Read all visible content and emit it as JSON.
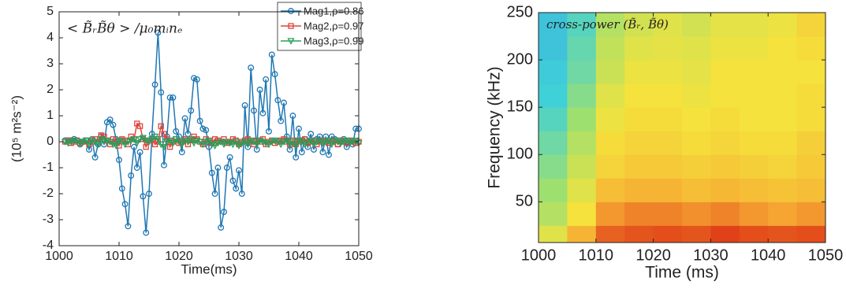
{
  "chart_data": [
    {
      "type": "line",
      "annotation": "< B̃ᵣB̃θ > /μ₀mᵢnₑ",
      "xlabel": "Time(ms)",
      "ylabel": "(10⁵ m²s⁻²)",
      "xlim": [
        1000,
        1050
      ],
      "xticks": [
        1000,
        1010,
        1020,
        1030,
        1040,
        1050
      ],
      "ylim": [
        -4,
        5
      ],
      "yticks": [
        -4,
        -3,
        -2,
        -1,
        0,
        1,
        2,
        3,
        4,
        5
      ],
      "legend": "upper right",
      "x": [
        1001,
        1001.5,
        1002,
        1002.5,
        1003,
        1003.5,
        1004,
        1004.5,
        1005,
        1005.5,
        1006,
        1006.5,
        1007,
        1007.5,
        1008,
        1008.5,
        1009,
        1009.5,
        1010,
        1010.5,
        1011,
        1011.5,
        1012,
        1012.5,
        1013,
        1013.5,
        1014,
        1014.5,
        1015,
        1015.5,
        1016,
        1016.5,
        1017,
        1017.5,
        1018,
        1018.5,
        1019,
        1019.5,
        1020,
        1020.5,
        1021,
        1021.5,
        1022,
        1022.5,
        1023,
        1023.5,
        1024,
        1024.5,
        1025,
        1025.5,
        1026,
        1026.5,
        1027,
        1027.5,
        1028,
        1028.5,
        1029,
        1029.5,
        1030,
        1030.5,
        1031,
        1031.5,
        1032,
        1032.5,
        1033,
        1033.5,
        1034,
        1034.5,
        1035,
        1035.5,
        1036,
        1036.5,
        1037,
        1037.5,
        1038,
        1038.5,
        1039,
        1039.5,
        1040,
        1040.5,
        1041,
        1041.5,
        1042,
        1042.5,
        1043,
        1043.5,
        1044,
        1044.5,
        1045,
        1045.5,
        1046,
        1046.5,
        1047,
        1047.5,
        1048,
        1048.5,
        1049,
        1049.5,
        1050
      ],
      "series": [
        {
          "name": "Mag1,ρ=0.86",
          "color": "#1f77b4",
          "marker": "circle",
          "values": [
            0.05,
            0.05,
            0.05,
            0.1,
            0.05,
            -0.1,
            0,
            0.05,
            -0.3,
            0.1,
            -0.6,
            -0.1,
            0.2,
            -0.1,
            0.75,
            0.85,
            0.65,
            0.1,
            -0.7,
            -1.8,
            -2.4,
            -3.25,
            -1.3,
            -0.2,
            -1.0,
            -0.4,
            -2.1,
            -3.5,
            -2.0,
            0.3,
            2.2,
            4.2,
            1.9,
            -0.9,
            0.2,
            1.7,
            1.7,
            0.4,
            0.2,
            -0.4,
            0.9,
            0.3,
            1.2,
            2.45,
            2.4,
            0.8,
            0.5,
            0.45,
            -0.2,
            -1.2,
            -2.0,
            -1.0,
            -3.3,
            -2.7,
            -1.0,
            -0.6,
            -1.5,
            -1.8,
            -1.1,
            -2.0,
            1.4,
            -0.2,
            2.85,
            1.2,
            -0.3,
            2.0,
            1.1,
            2.4,
            0.4,
            3.35,
            2.6,
            1.6,
            0.8,
            1.5,
            0.2,
            -0.3,
            1.0,
            -0.6,
            0.5,
            -0.4,
            0.1,
            -0.2,
            0.3,
            -0.3,
            0.1,
            0.2,
            -0.4,
            0.2,
            -0.5,
            0.2,
            0.1,
            -0.1,
            0,
            0.1,
            -0.2,
            0,
            -0.1,
            0.5,
            0.5
          ]
        },
        {
          "name": "Mag2,ρ=0.97",
          "color": "#e0443a",
          "marker": "square",
          "values": [
            0,
            0.05,
            -0.05,
            0,
            0.05,
            -0.05,
            0,
            0.05,
            -0.1,
            0,
            0.1,
            0,
            0.25,
            0.2,
            0.05,
            -0.1,
            0.1,
            0,
            -0.15,
            0.1,
            0.05,
            -0.1,
            0.2,
            0.1,
            0.7,
            0.6,
            0.1,
            -0.2,
            0.05,
            0.1,
            -0.1,
            0,
            0.6,
            0.3,
            0.1,
            -0.2,
            0,
            0.1,
            -0.05,
            0,
            0.1,
            -0.1,
            0.05,
            0.2,
            0.1,
            0,
            -0.1,
            0.1,
            0,
            -0.05,
            0.1,
            0.05,
            0,
            0.1,
            -0.05,
            0,
            0.1,
            0.05,
            -0.1,
            0,
            0.05,
            0.1,
            0,
            -0.1,
            0.05,
            0,
            0.1,
            -0.1,
            0,
            0.05,
            -0.05,
            0,
            0.05,
            0.1,
            0,
            -0.1,
            0.05,
            -0.1,
            0,
            0.05,
            0.1,
            -0.05,
            0,
            0.05,
            -0.1,
            0,
            0.05,
            0,
            -0.05,
            0,
            0.05,
            -0.1,
            0.05,
            0,
            -0.05,
            0.05,
            0,
            -0.05,
            0
          ]
        },
        {
          "name": "Mag3,ρ=0.99",
          "color": "#2a9d5a",
          "marker": "triangle-down",
          "values": [
            0,
            -0.05,
            0,
            0.05,
            0,
            -0.05,
            0,
            0.05,
            -0.1,
            0.05,
            0,
            -0.1,
            0.1,
            0,
            0.05,
            0,
            -0.1,
            -0.15,
            0.05,
            0,
            -0.1,
            0,
            0.05,
            0.1,
            -0.05,
            0.1,
            0.15,
            0.05,
            0,
            0.1,
            0.2,
            0.1,
            -0.1,
            -0.2,
            0,
            0.05,
            -0.05,
            0.1,
            0,
            -0.1,
            0.05,
            0,
            0.1,
            -0.05,
            0.05,
            0,
            -0.1,
            0,
            0.05,
            -0.1,
            -0.15,
            -0.05,
            0,
            -0.1,
            0,
            -0.05,
            -0.1,
            0,
            -0.15,
            -0.05,
            0,
            -0.1,
            0.05,
            0,
            -0.1,
            0.05,
            0,
            -0.05,
            -0.1,
            0,
            0.05,
            0,
            -0.1,
            0,
            0.05,
            -0.1,
            0,
            -0.15,
            0.05,
            0,
            -0.1,
            0,
            0.05,
            -0.1,
            0,
            0.05,
            -0.05,
            0,
            0.05,
            -0.1,
            0,
            0.05,
            -0.05,
            0,
            0.05,
            -0.05,
            0,
            0.05,
            -0.05
          ]
        }
      ]
    },
    {
      "type": "heatmap",
      "annotation": "cross-power (B̃ᵣ, B̃θ)",
      "xlabel": "Time (ms)",
      "ylabel": "Frequency (kHz)",
      "xlim": [
        1000,
        1050
      ],
      "xticks": [
        1000,
        1010,
        1020,
        1030,
        1040,
        1050
      ],
      "ylim": [
        7,
        250
      ],
      "yticks": [
        50,
        100,
        150,
        200,
        250
      ],
      "colormap": [
        "#3a9be0",
        "#3fd0d8",
        "#9ee070",
        "#f5e23c",
        "#f6a432",
        "#d8200f"
      ],
      "xbins": [
        1000,
        1005,
        1010,
        1015,
        1020,
        1025,
        1030,
        1035,
        1040,
        1045,
        1050
      ],
      "ybins": [
        7,
        25,
        50,
        75,
        100,
        125,
        150,
        175,
        200,
        225,
        250
      ],
      "z": [
        [
          0.55,
          0.75,
          0.9,
          0.92,
          0.93,
          0.92,
          0.95,
          0.93,
          0.92,
          0.93
        ],
        [
          0.45,
          0.6,
          0.82,
          0.85,
          0.85,
          0.83,
          0.85,
          0.82,
          0.8,
          0.82
        ],
        [
          0.4,
          0.55,
          0.72,
          0.75,
          0.75,
          0.72,
          0.74,
          0.72,
          0.7,
          0.72
        ],
        [
          0.35,
          0.5,
          0.65,
          0.68,
          0.68,
          0.66,
          0.68,
          0.66,
          0.65,
          0.68
        ],
        [
          0.3,
          0.45,
          0.62,
          0.65,
          0.65,
          0.62,
          0.64,
          0.62,
          0.62,
          0.66
        ],
        [
          0.25,
          0.4,
          0.58,
          0.62,
          0.62,
          0.6,
          0.62,
          0.6,
          0.6,
          0.62
        ],
        [
          0.2,
          0.35,
          0.55,
          0.6,
          0.6,
          0.58,
          0.6,
          0.6,
          0.6,
          0.62
        ],
        [
          0.18,
          0.3,
          0.5,
          0.58,
          0.58,
          0.56,
          0.6,
          0.6,
          0.6,
          0.6
        ],
        [
          0.15,
          0.28,
          0.48,
          0.55,
          0.56,
          0.55,
          0.58,
          0.58,
          0.6,
          0.62
        ],
        [
          0.15,
          0.25,
          0.45,
          0.52,
          0.55,
          0.52,
          0.56,
          0.56,
          0.58,
          0.65
        ]
      ]
    }
  ]
}
